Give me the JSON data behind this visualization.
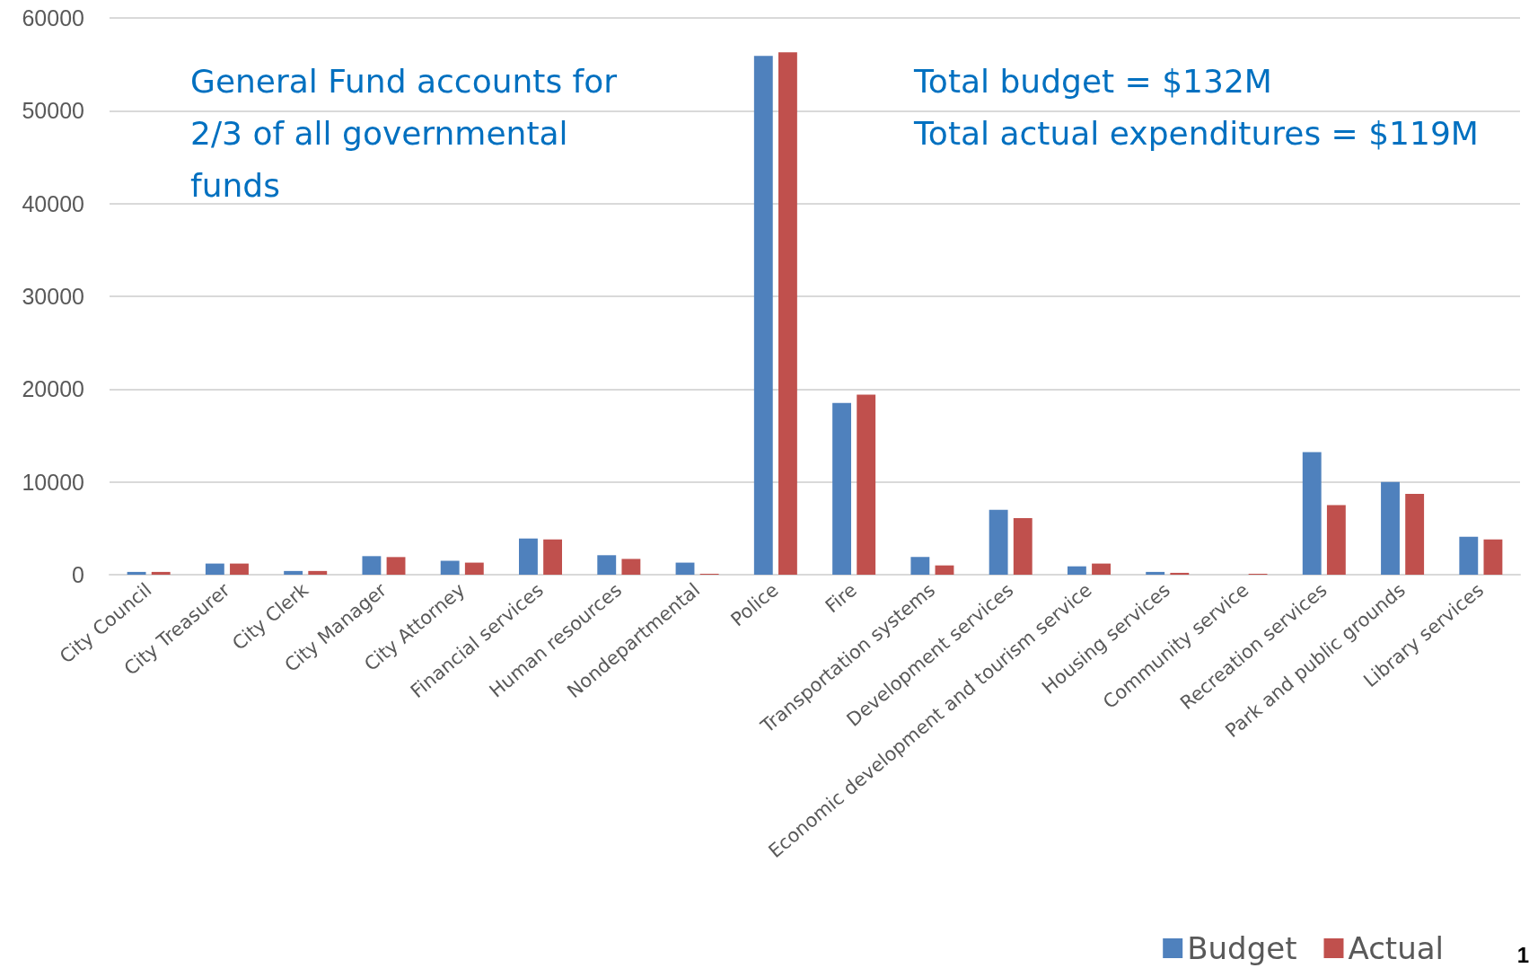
{
  "chart_data": {
    "type": "bar",
    "categories": [
      "City Council",
      "City Treasurer",
      "City Clerk",
      "City Manager",
      "City Attorney",
      "Financial services",
      "Human resources",
      "Nondepartmental",
      "Police",
      "Fire",
      "Transportation systems",
      "Development services",
      "Economic development and tourism service",
      "Housing services",
      "Community service",
      "Recreation services",
      "Park and public grounds",
      "Library services"
    ],
    "series": [
      {
        "name": "Budget",
        "color": "#4f81bd",
        "values": [
          300,
          1200,
          400,
          2000,
          1500,
          3900,
          2100,
          1300,
          55900,
          18500,
          1900,
          7000,
          900,
          300,
          0,
          13200,
          10000,
          4100
        ]
      },
      {
        "name": "Actual",
        "color": "#c0504d",
        "values": [
          300,
          1200,
          400,
          1900,
          1300,
          3800,
          1700,
          100,
          56300,
          19400,
          1000,
          6100,
          1200,
          200,
          100,
          7500,
          8700,
          3800
        ]
      }
    ],
    "ylim": [
      0,
      60000
    ],
    "yticks": [
      0,
      10000,
      20000,
      30000,
      40000,
      50000,
      60000
    ],
    "grid": "y",
    "legend": "bottom right",
    "annotations": [
      "General Fund accounts for 2/3 of all governmental funds",
      "Total budget = $132M\nTotal actual expenditures = $119M",
      "1"
    ]
  }
}
